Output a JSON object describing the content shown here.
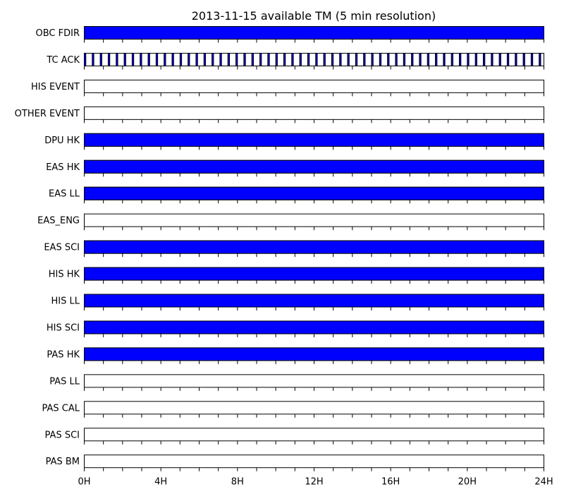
{
  "chart_data": {
    "type": "timeline",
    "title": "2013-11-15 available TM (5 min resolution)",
    "xlabel": "",
    "ylabel": "",
    "x_unit": "hours",
    "xlim": [
      0,
      24
    ],
    "x_ticks": [
      0,
      4,
      8,
      12,
      16,
      20,
      24
    ],
    "x_tick_labels": [
      "0H",
      "4H",
      "8H",
      "12H",
      "16H",
      "20H",
      "24H"
    ],
    "resolution_minutes": 5,
    "fill_color": "#0000ff",
    "edge_color": "#000000",
    "series": [
      {
        "name": "OBC FDIR",
        "available": [
          [
            0,
            24
          ]
        ]
      },
      {
        "name": "TC ACK",
        "available": [
          [
            0.0,
            0.083
          ],
          [
            0.417,
            0.5
          ],
          [
            0.833,
            0.917
          ],
          [
            1.25,
            1.333
          ],
          [
            1.667,
            1.75
          ],
          [
            2.083,
            2.167
          ],
          [
            2.5,
            2.583
          ],
          [
            2.917,
            3.0
          ],
          [
            3.333,
            3.417
          ],
          [
            3.75,
            3.833
          ],
          [
            4.167,
            4.25
          ],
          [
            4.583,
            4.667
          ],
          [
            5.0,
            5.083
          ],
          [
            5.417,
            5.5
          ],
          [
            5.833,
            5.917
          ],
          [
            6.25,
            6.333
          ],
          [
            6.667,
            6.75
          ],
          [
            7.083,
            7.167
          ],
          [
            7.5,
            7.583
          ],
          [
            7.917,
            8.0
          ],
          [
            8.333,
            8.417
          ],
          [
            8.75,
            8.833
          ],
          [
            9.167,
            9.25
          ],
          [
            9.583,
            9.667
          ],
          [
            10.0,
            10.083
          ],
          [
            10.417,
            10.5
          ],
          [
            10.833,
            10.917
          ],
          [
            11.25,
            11.333
          ],
          [
            11.667,
            11.75
          ],
          [
            12.083,
            12.167
          ],
          [
            12.5,
            12.583
          ],
          [
            12.917,
            13.0
          ],
          [
            13.333,
            13.417
          ],
          [
            13.75,
            13.833
          ],
          [
            14.167,
            14.25
          ],
          [
            14.583,
            14.667
          ],
          [
            15.0,
            15.083
          ],
          [
            15.417,
            15.5
          ],
          [
            15.833,
            15.917
          ],
          [
            16.25,
            16.333
          ],
          [
            16.667,
            16.75
          ],
          [
            17.083,
            17.167
          ],
          [
            17.5,
            17.583
          ],
          [
            17.917,
            18.0
          ],
          [
            18.333,
            18.417
          ],
          [
            18.75,
            18.833
          ],
          [
            19.167,
            19.25
          ],
          [
            19.583,
            19.667
          ],
          [
            20.0,
            20.083
          ],
          [
            20.417,
            20.5
          ],
          [
            20.833,
            20.917
          ],
          [
            21.25,
            21.333
          ],
          [
            21.667,
            21.75
          ],
          [
            22.083,
            22.167
          ],
          [
            22.5,
            22.583
          ],
          [
            22.917,
            23.0
          ],
          [
            23.333,
            23.417
          ],
          [
            23.75,
            23.833
          ]
        ]
      },
      {
        "name": "HIS EVENT",
        "available": []
      },
      {
        "name": "OTHER EVENT",
        "available": []
      },
      {
        "name": "DPU HK",
        "available": [
          [
            0,
            24
          ]
        ]
      },
      {
        "name": "EAS HK",
        "available": [
          [
            0,
            24
          ]
        ]
      },
      {
        "name": "EAS LL",
        "available": [
          [
            0,
            24
          ]
        ]
      },
      {
        "name": "EAS_ENG",
        "available": []
      },
      {
        "name": "EAS SCI",
        "available": [
          [
            0,
            24
          ]
        ]
      },
      {
        "name": "HIS HK",
        "available": [
          [
            0,
            24
          ]
        ]
      },
      {
        "name": "HIS LL",
        "available": [
          [
            0,
            24
          ]
        ]
      },
      {
        "name": "HIS SCI",
        "available": [
          [
            0,
            24
          ]
        ]
      },
      {
        "name": "PAS HK",
        "available": [
          [
            0,
            24
          ]
        ]
      },
      {
        "name": "PAS LL",
        "available": []
      },
      {
        "name": "PAS CAL",
        "available": []
      },
      {
        "name": "PAS SCI",
        "available": []
      },
      {
        "name": "PAS BM",
        "available": []
      }
    ]
  }
}
